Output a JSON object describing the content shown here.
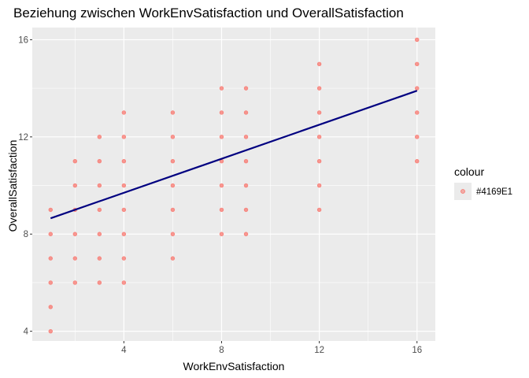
{
  "chart_data": {
    "type": "scatter",
    "title": "Beziehung zwischen WorkEnvSatisfaction und OverallSatisfaction",
    "xlabel": "WorkEnvSatisfaction",
    "ylabel": "OverallSatisfaction",
    "xlim": [
      0.25,
      16.75
    ],
    "ylim": [
      3.6,
      16.5
    ],
    "x_ticks": [
      4,
      8,
      12,
      16
    ],
    "y_ticks": [
      4,
      8,
      12,
      16
    ],
    "grid": true,
    "point_color": "#F8766D",
    "line_color": "#000080",
    "panel_background": "#EBEBEB",
    "legend": {
      "title": "colour",
      "label": "#4169E1",
      "placement": "right"
    },
    "points": [
      {
        "x": 1,
        "y": 4
      },
      {
        "x": 1,
        "y": 5
      },
      {
        "x": 1,
        "y": 6
      },
      {
        "x": 1,
        "y": 7
      },
      {
        "x": 1,
        "y": 8
      },
      {
        "x": 1,
        "y": 9
      },
      {
        "x": 2,
        "y": 6
      },
      {
        "x": 2,
        "y": 7
      },
      {
        "x": 2,
        "y": 8
      },
      {
        "x": 2,
        "y": 9
      },
      {
        "x": 2,
        "y": 10
      },
      {
        "x": 2,
        "y": 11
      },
      {
        "x": 3,
        "y": 6
      },
      {
        "x": 3,
        "y": 7
      },
      {
        "x": 3,
        "y": 8
      },
      {
        "x": 3,
        "y": 9
      },
      {
        "x": 3,
        "y": 10
      },
      {
        "x": 3,
        "y": 11
      },
      {
        "x": 3,
        "y": 12
      },
      {
        "x": 4,
        "y": 6
      },
      {
        "x": 4,
        "y": 7
      },
      {
        "x": 4,
        "y": 8
      },
      {
        "x": 4,
        "y": 9
      },
      {
        "x": 4,
        "y": 10
      },
      {
        "x": 4,
        "y": 11
      },
      {
        "x": 4,
        "y": 12
      },
      {
        "x": 4,
        "y": 13
      },
      {
        "x": 6,
        "y": 7
      },
      {
        "x": 6,
        "y": 8
      },
      {
        "x": 6,
        "y": 9
      },
      {
        "x": 6,
        "y": 10
      },
      {
        "x": 6,
        "y": 11
      },
      {
        "x": 6,
        "y": 12
      },
      {
        "x": 6,
        "y": 13
      },
      {
        "x": 8,
        "y": 8
      },
      {
        "x": 8,
        "y": 9
      },
      {
        "x": 8,
        "y": 10
      },
      {
        "x": 8,
        "y": 11
      },
      {
        "x": 8,
        "y": 12
      },
      {
        "x": 8,
        "y": 13
      },
      {
        "x": 8,
        "y": 14
      },
      {
        "x": 9,
        "y": 8
      },
      {
        "x": 9,
        "y": 9
      },
      {
        "x": 9,
        "y": 10
      },
      {
        "x": 9,
        "y": 11
      },
      {
        "x": 9,
        "y": 12
      },
      {
        "x": 9,
        "y": 13
      },
      {
        "x": 9,
        "y": 14
      },
      {
        "x": 12,
        "y": 9
      },
      {
        "x": 12,
        "y": 10
      },
      {
        "x": 12,
        "y": 11
      },
      {
        "x": 12,
        "y": 12
      },
      {
        "x": 12,
        "y": 13
      },
      {
        "x": 12,
        "y": 14
      },
      {
        "x": 12,
        "y": 15
      },
      {
        "x": 16,
        "y": 11
      },
      {
        "x": 16,
        "y": 12
      },
      {
        "x": 16,
        "y": 13
      },
      {
        "x": 16,
        "y": 14
      },
      {
        "x": 16,
        "y": 15
      },
      {
        "x": 16,
        "y": 16
      }
    ],
    "regression_line": [
      {
        "x": 1,
        "y": 8.65
      },
      {
        "x": 16,
        "y": 13.9
      }
    ]
  }
}
